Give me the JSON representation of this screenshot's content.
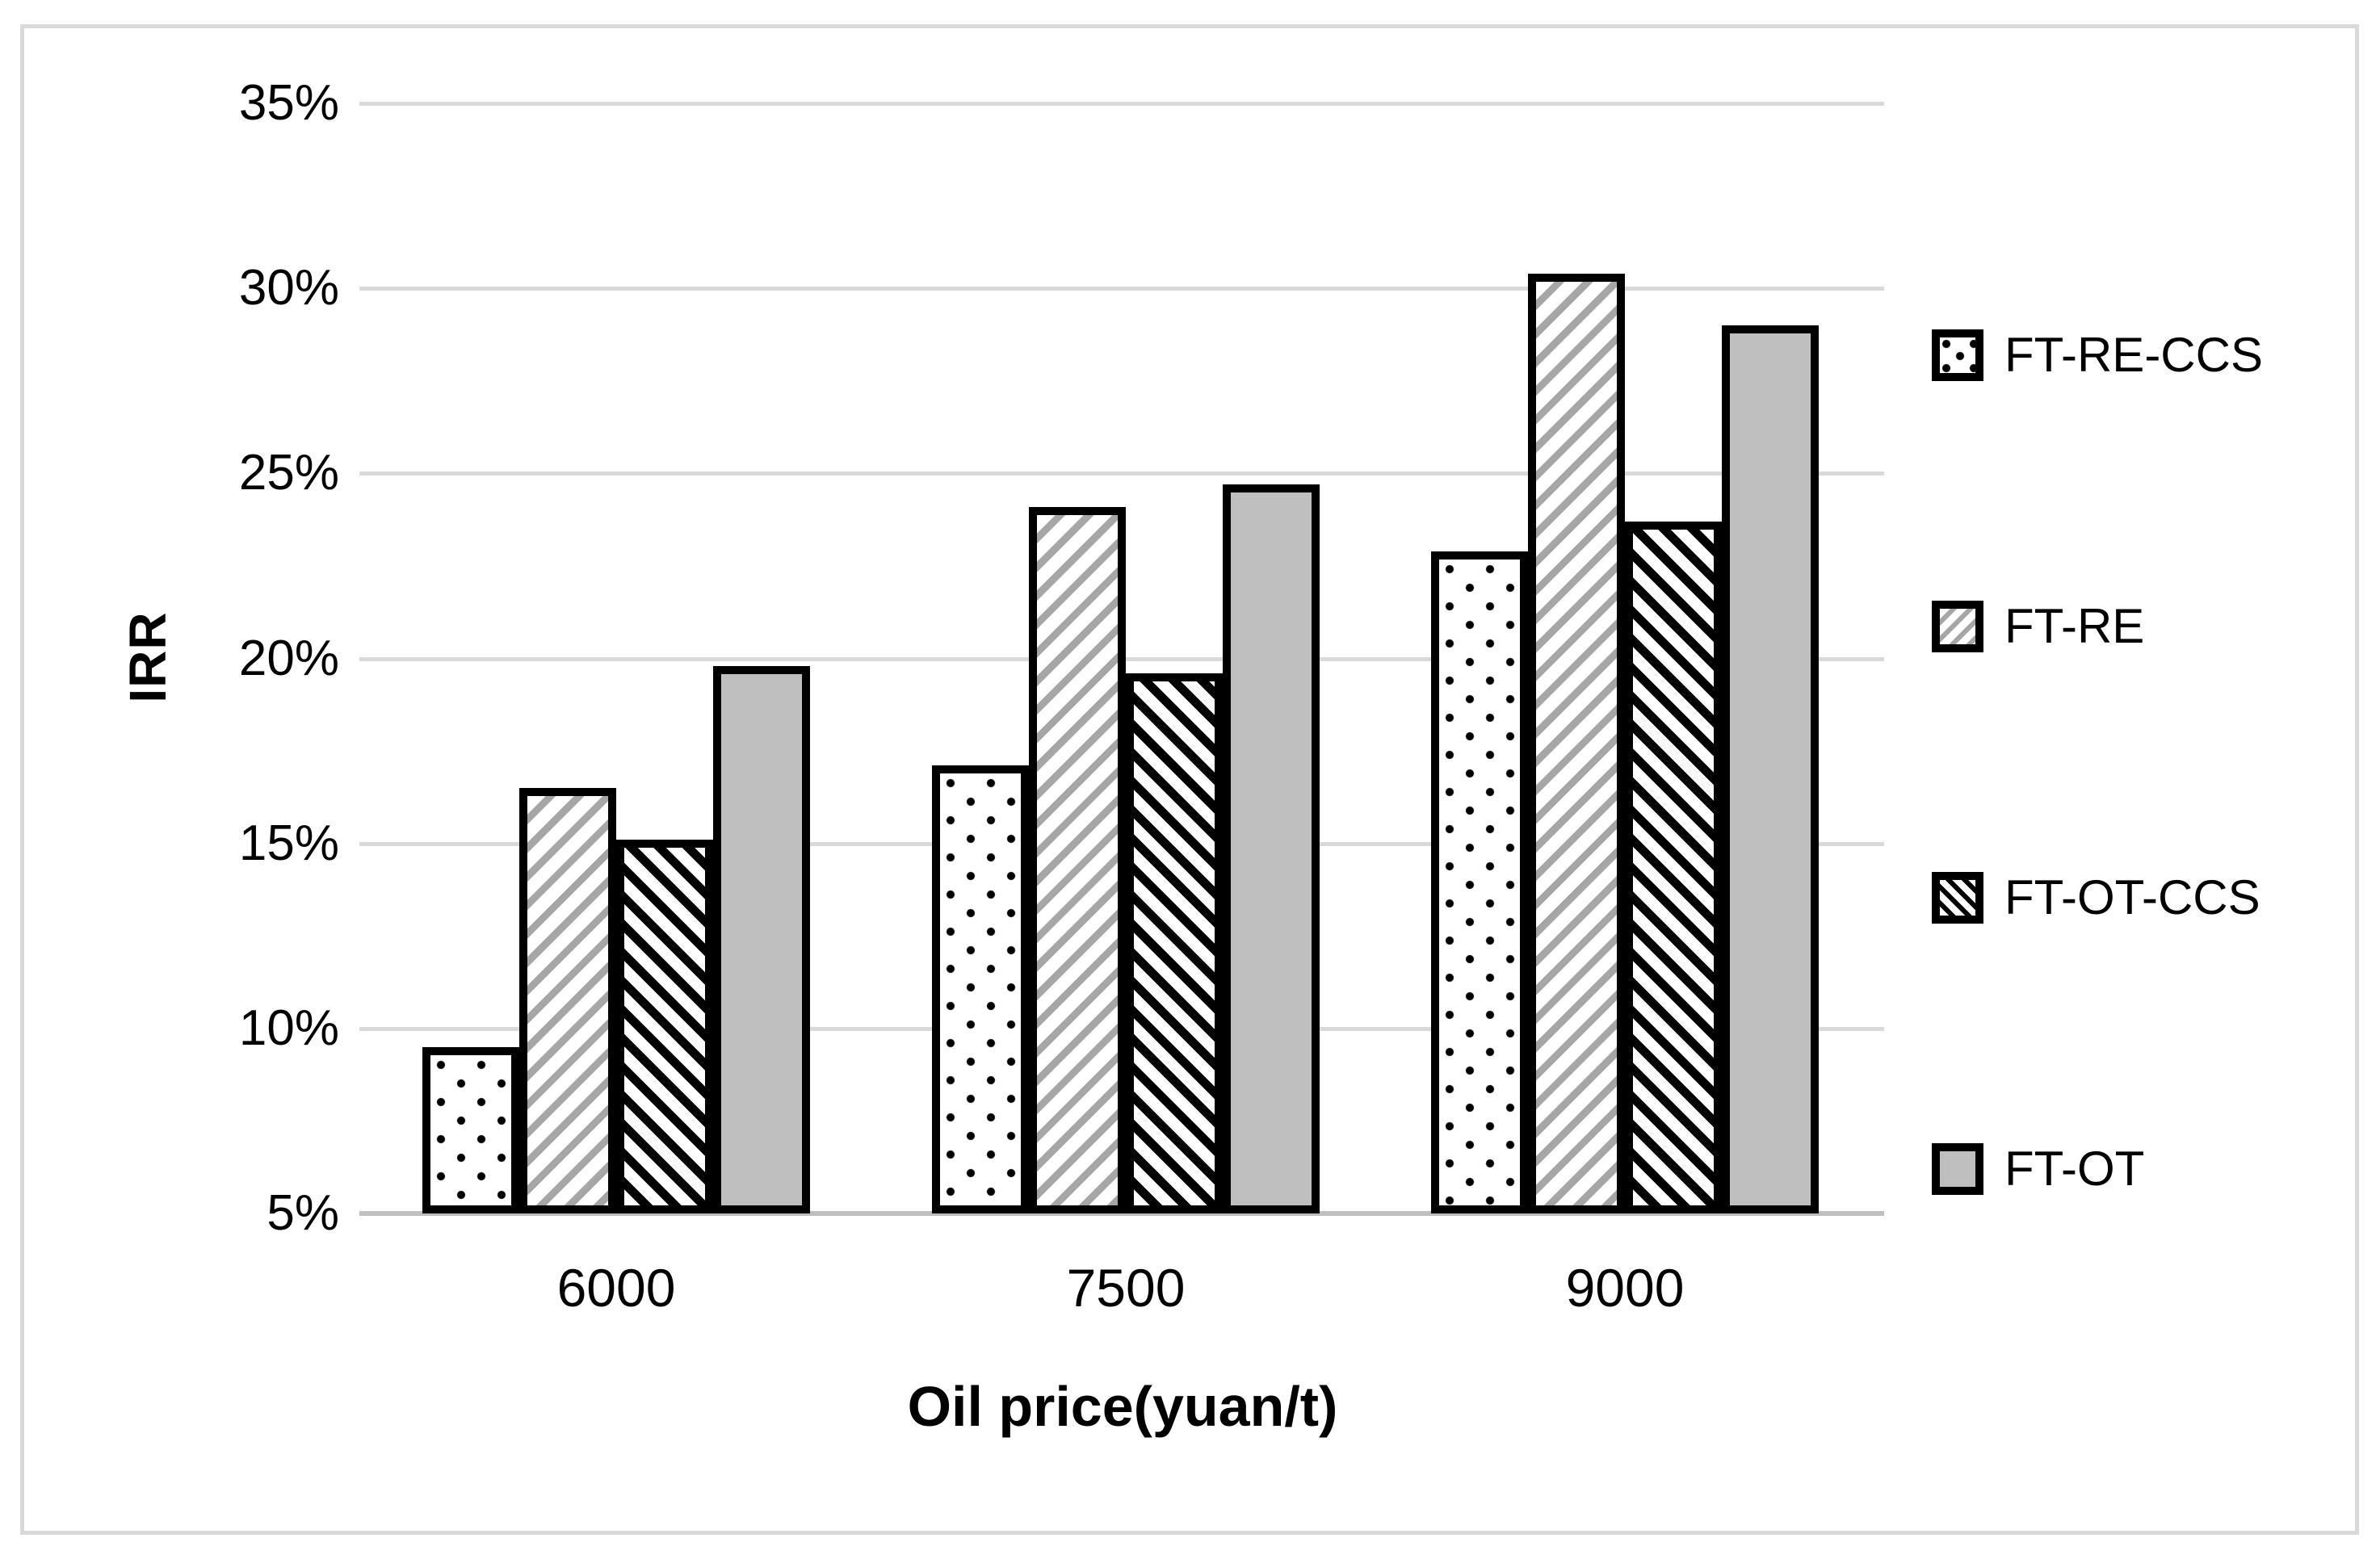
{
  "chart_data": {
    "type": "bar",
    "title": "",
    "xlabel": "Oil price(yuan/t)",
    "ylabel": "IRR",
    "categories": [
      "6000",
      "7500",
      "9000"
    ],
    "series": [
      {
        "name": "FT-RE-CCS",
        "pattern": "dots",
        "values": [
          9.5,
          17.1,
          22.9
        ]
      },
      {
        "name": "FT-RE",
        "pattern": "diag-gray",
        "values": [
          16.5,
          24.1,
          30.4
        ]
      },
      {
        "name": "FT-OT-CCS",
        "pattern": "diag-black",
        "values": [
          15.1,
          19.6,
          23.7
        ]
      },
      {
        "name": "FT-OT",
        "pattern": "solid",
        "values": [
          19.8,
          24.7,
          29.0
        ]
      }
    ],
    "y_ticks": [
      "35%",
      "30%",
      "25%",
      "20%",
      "15%",
      "10%",
      "5%"
    ],
    "ylim": [
      5,
      35
    ],
    "y_tick_step": 5,
    "grid": true,
    "legend_position": "right",
    "colors": {
      "bar_outline": "#000000",
      "solid_gray_fill": "#bfbfbf",
      "stripe_gray": "#a6a6a6",
      "gridline": "#d9d9d9",
      "axis_line": "#bfbfbf",
      "frame_border": "#d9d9d9",
      "text": "#000000",
      "background": "#ffffff"
    }
  }
}
